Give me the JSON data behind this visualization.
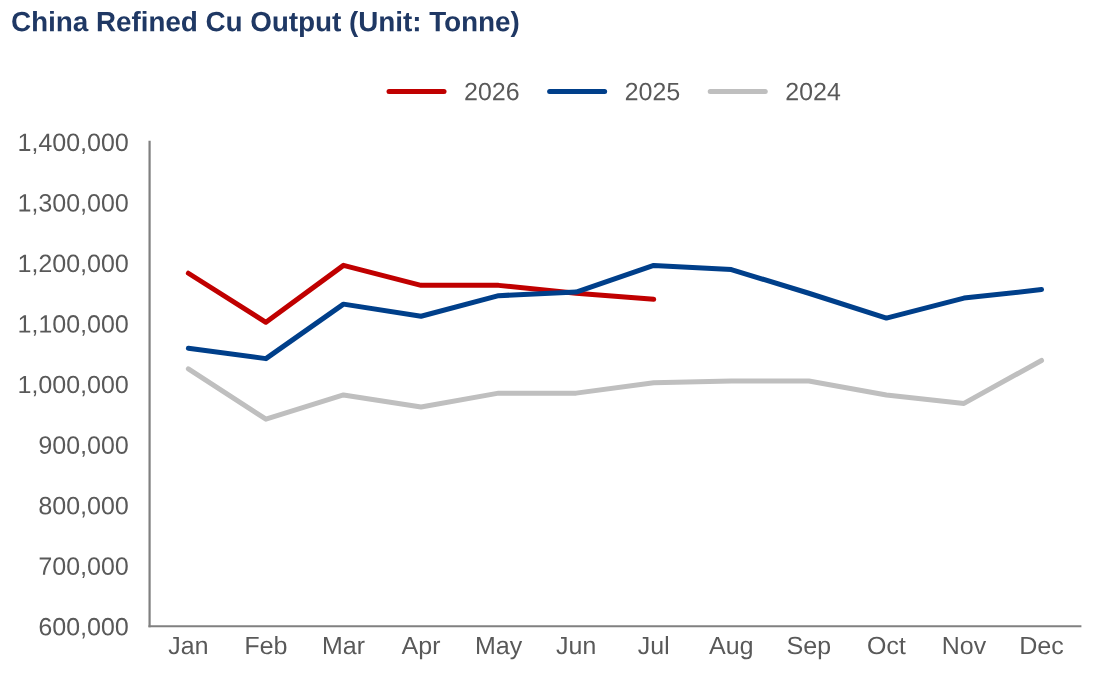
{
  "chart_data": {
    "type": "line",
    "title": "China Refined Cu Output (Unit: Tonne)",
    "categories": [
      "Jan",
      "Feb",
      "Mar",
      "Apr",
      "May",
      "Jun",
      "Jul",
      "Aug",
      "Sep",
      "Oct",
      "Nov",
      "Dec"
    ],
    "series": [
      {
        "name": "2026",
        "color": "#c00000",
        "values": [
          1183000,
          1102000,
          1196000,
          1163000,
          1163000,
          1150000,
          1140000,
          null,
          null,
          null,
          null,
          null
        ]
      },
      {
        "name": "2025",
        "color": "#003f8a",
        "values": [
          1059000,
          1042000,
          1132000,
          1112000,
          1146000,
          1152000,
          1196000,
          1189000,
          1150000,
          1109000,
          1142000,
          1156000
        ]
      },
      {
        "name": "2024",
        "color": "#bfbfbf",
        "values": [
          1025000,
          942000,
          982000,
          962000,
          985000,
          985000,
          1002000,
          1005000,
          1005000,
          982000,
          968000,
          1039000
        ]
      }
    ],
    "ylim": [
      600000,
      1400000
    ],
    "yticks": [
      {
        "value": 600000,
        "label": "600,000"
      },
      {
        "value": 700000,
        "label": "700,000"
      },
      {
        "value": 800000,
        "label": "800,000"
      },
      {
        "value": 900000,
        "label": "900,000"
      },
      {
        "value": 1000000,
        "label": "1,000,000"
      },
      {
        "value": 1100000,
        "label": "1,100,000"
      },
      {
        "value": 1200000,
        "label": "1,200,000"
      },
      {
        "value": 1300000,
        "label": "1,300,000"
      },
      {
        "value": 1400000,
        "label": "1,400,000"
      }
    ],
    "grid": false,
    "legend": "top",
    "marker": "none",
    "line_style": "solid"
  }
}
